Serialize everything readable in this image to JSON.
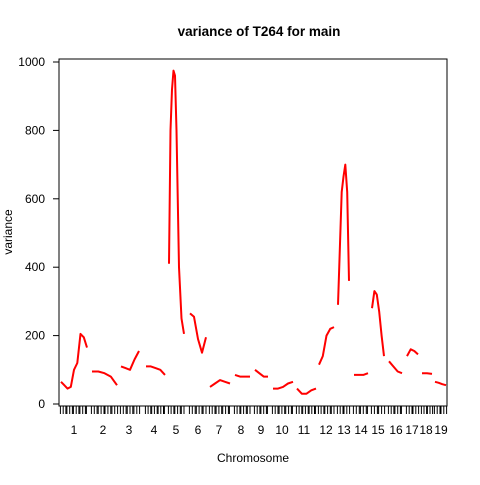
{
  "chart_data": {
    "type": "line",
    "title": "variance of T264 for main",
    "xlabel": "Chromosome",
    "ylabel": "variance",
    "ylim": [
      0,
      1000
    ],
    "yticks": [
      0,
      200,
      400,
      600,
      800,
      1000
    ],
    "line_color": "#ff0000",
    "x_tick_labels": [
      "1",
      "2",
      "3",
      "4",
      "5",
      "6",
      "7",
      "8",
      "9",
      "10",
      "11",
      "12",
      "13",
      "14",
      "15",
      "16",
      "17",
      "18",
      "19"
    ],
    "series": [
      {
        "chromosome": "1",
        "x": [
          0.0,
          0.5,
          1.0,
          1.5,
          2.0,
          2.5,
          3.0,
          3.5,
          4.0
        ],
        "y": [
          65,
          55,
          45,
          50,
          100,
          120,
          205,
          195,
          165
        ]
      },
      {
        "chromosome": "2",
        "x": [
          0.0,
          1.0,
          2.0,
          3.0,
          4.0
        ],
        "y": [
          95,
          95,
          90,
          80,
          55
        ]
      },
      {
        "chromosome": "3",
        "x": [
          0.0,
          1.0,
          2.0,
          3.0,
          4.0
        ],
        "y": [
          110,
          105,
          100,
          130,
          155
        ]
      },
      {
        "chromosome": "4",
        "x": [
          0.0,
          1.0,
          2.0,
          3.0,
          4.0
        ],
        "y": [
          110,
          110,
          105,
          100,
          85
        ]
      },
      {
        "chromosome": "5",
        "x": [
          0.0,
          0.3,
          0.6,
          0.9,
          1.2,
          1.5,
          2.0,
          2.5,
          3.0
        ],
        "y": [
          410,
          800,
          920,
          975,
          960,
          800,
          400,
          250,
          205
        ]
      },
      {
        "chromosome": "6",
        "x": [
          0.0,
          1.0,
          2.0,
          3.0,
          4.0
        ],
        "y": [
          265,
          255,
          190,
          150,
          195
        ]
      },
      {
        "chromosome": "7",
        "x": [
          0.0,
          1.0,
          2.0,
          3.0,
          4.0
        ],
        "y": [
          50,
          60,
          70,
          65,
          60
        ]
      },
      {
        "chromosome": "8",
        "x": [
          0.0,
          1.0,
          2.0,
          3.0
        ],
        "y": [
          85,
          80,
          80,
          80
        ]
      },
      {
        "chromosome": "9",
        "x": [
          0.0,
          1.0,
          2.0,
          3.0
        ],
        "y": [
          100,
          90,
          80,
          80
        ]
      },
      {
        "chromosome": "10",
        "x": [
          0.0,
          1.0,
          2.0,
          3.0,
          4.0
        ],
        "y": [
          45,
          45,
          50,
          60,
          65
        ]
      },
      {
        "chromosome": "11",
        "x": [
          0.0,
          1.0,
          2.0,
          3.0,
          4.0
        ],
        "y": [
          45,
          30,
          30,
          40,
          45
        ]
      },
      {
        "chromosome": "12",
        "x": [
          0.0,
          1.0,
          2.0,
          3.0,
          4.0
        ],
        "y": [
          115,
          140,
          200,
          220,
          225
        ]
      },
      {
        "chromosome": "13",
        "x": [
          0.0,
          0.5,
          1.0,
          1.5,
          2.0,
          2.5,
          3.0
        ],
        "y": [
          290,
          450,
          620,
          665,
          700,
          620,
          360
        ]
      },
      {
        "chromosome": "14",
        "x": [
          0.0,
          1.0,
          2.0,
          3.0
        ],
        "y": [
          85,
          85,
          85,
          90
        ]
      },
      {
        "chromosome": "15",
        "x": [
          0.0,
          0.7,
          1.4,
          2.1,
          2.8,
          3.5
        ],
        "y": [
          280,
          330,
          320,
          270,
          200,
          140
        ]
      },
      {
        "chromosome": "16",
        "x": [
          0.0,
          1.0,
          2.0,
          3.0
        ],
        "y": [
          125,
          110,
          95,
          90
        ]
      },
      {
        "chromosome": "17",
        "x": [
          0.0,
          1.0,
          2.0,
          3.0
        ],
        "y": [
          140,
          160,
          155,
          145
        ]
      },
      {
        "chromosome": "18",
        "x": [
          0.0,
          1.0,
          2.0
        ],
        "y": [
          90,
          90,
          88
        ]
      },
      {
        "chromosome": "19",
        "x": [
          0.0,
          1.0,
          2.0,
          3.0
        ],
        "y": [
          65,
          62,
          58,
          55
        ]
      }
    ]
  }
}
